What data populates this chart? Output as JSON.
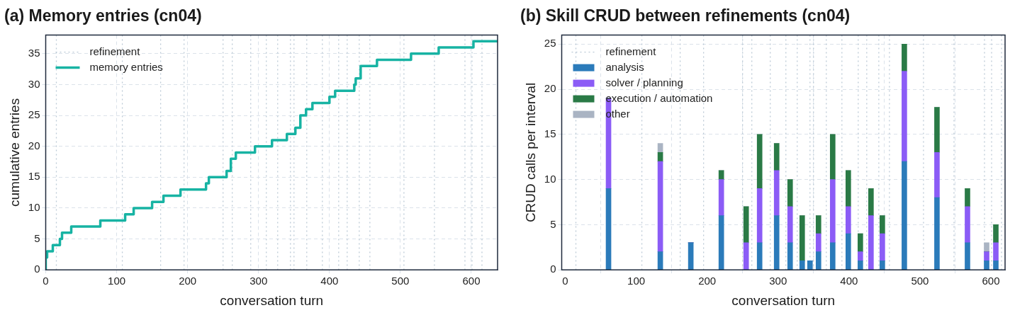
{
  "chart_data": [
    {
      "type": "step",
      "title": "(a) Memory entries (cn04)",
      "xlabel": "conversation turn",
      "ylabel": "cumulative entries",
      "xlim": [
        0,
        637
      ],
      "ylim": [
        0,
        38
      ],
      "xticks": [
        0,
        100,
        200,
        300,
        400,
        500,
        600
      ],
      "yticks": [
        0,
        5,
        10,
        15,
        20,
        25,
        30,
        35
      ],
      "grid": true,
      "legend": "top left",
      "marker": "none",
      "series": [
        {
          "name": "memory entries",
          "color": "#17b3a3",
          "x": [
            0,
            2,
            10,
            20,
            23,
            36,
            77,
            112,
            124,
            150,
            166,
            190,
            226,
            230,
            255,
            261,
            268,
            295,
            319,
            340,
            352,
            359,
            367,
            376,
            400,
            408,
            435,
            437,
            444,
            467,
            515,
            554,
            603,
            616,
            637
          ],
          "values": [
            0,
            2,
            3,
            4,
            5,
            6,
            7,
            8,
            9,
            10,
            11,
            12,
            13,
            14,
            15,
            16,
            18,
            19,
            20,
            21,
            22,
            23,
            25,
            26,
            27,
            28,
            29,
            30,
            31,
            33,
            34,
            35,
            36,
            37,
            37
          ]
        }
      ],
      "ref_lines": [
        {
          "axis": "x",
          "value": 15,
          "label": "refinement",
          "color": "#bccad6",
          "line_style": "dotted"
        },
        {
          "axis": "x",
          "value": 108,
          "color": "#bccad6",
          "line_style": "dotted"
        },
        {
          "axis": "x",
          "value": 162,
          "color": "#bccad6",
          "line_style": "dotted"
        },
        {
          "axis": "x",
          "value": 195,
          "color": "#bccad6",
          "line_style": "dotted"
        },
        {
          "axis": "x",
          "value": 250,
          "color": "#bccad6",
          "line_style": "dotted"
        },
        {
          "axis": "x",
          "value": 263,
          "color": "#bccad6",
          "line_style": "dotted"
        },
        {
          "axis": "x",
          "value": 289,
          "color": "#bccad6",
          "line_style": "dotted"
        },
        {
          "axis": "x",
          "value": 311,
          "color": "#bccad6",
          "line_style": "dotted"
        },
        {
          "axis": "x",
          "value": 327,
          "color": "#bccad6",
          "line_style": "dotted"
        },
        {
          "axis": "x",
          "value": 345,
          "color": "#bccad6",
          "line_style": "dotted"
        },
        {
          "axis": "x",
          "value": 350,
          "color": "#bccad6",
          "line_style": "dotted"
        },
        {
          "axis": "x",
          "value": 368,
          "color": "#bccad6",
          "line_style": "dotted"
        },
        {
          "axis": "x",
          "value": 390,
          "color": "#bccad6",
          "line_style": "dotted"
        },
        {
          "axis": "x",
          "value": 413,
          "color": "#bccad6",
          "line_style": "dotted"
        },
        {
          "axis": "x",
          "value": 425,
          "color": "#bccad6",
          "line_style": "dotted"
        },
        {
          "axis": "x",
          "value": 442,
          "color": "#bccad6",
          "line_style": "dotted"
        },
        {
          "axis": "x",
          "value": 457,
          "color": "#bccad6",
          "line_style": "dotted"
        },
        {
          "axis": "x",
          "value": 505,
          "color": "#bccad6",
          "line_style": "dotted"
        },
        {
          "axis": "x",
          "value": 548,
          "color": "#bccad6",
          "line_style": "dotted"
        },
        {
          "axis": "x",
          "value": 591,
          "color": "#bccad6",
          "line_style": "dotted"
        },
        {
          "axis": "x",
          "value": 601,
          "color": "#bccad6",
          "line_style": "dotted"
        },
        {
          "axis": "x",
          "value": 615,
          "color": "#bccad6",
          "line_style": "dotted"
        }
      ]
    },
    {
      "type": "bar",
      "stacked": true,
      "title": "(b) Skill CRUD between refinements (cn04)",
      "xlabel": "conversation turn",
      "ylabel": "CRUD calls per interval",
      "xlim": [
        -5,
        620
      ],
      "ylim": [
        0,
        26
      ],
      "xticks": [
        0,
        100,
        200,
        300,
        400,
        500,
        600
      ],
      "yticks": [
        0,
        5,
        10,
        15,
        20,
        25
      ],
      "grid": true,
      "legend": "top left",
      "x": [
        61,
        134,
        177,
        220,
        255,
        274,
        298,
        317,
        334,
        345,
        357,
        377,
        399,
        416,
        431,
        447,
        478,
        524,
        567,
        594,
        607
      ],
      "series": [
        {
          "name": "analysis",
          "color": "#2b7bba",
          "values": [
            9,
            2,
            3,
            6,
            0,
            3,
            6,
            3,
            1,
            1,
            2,
            3,
            4,
            1,
            0,
            1,
            12,
            8,
            3,
            1,
            1
          ]
        },
        {
          "name": "solver / planning",
          "color": "#8b5cf6",
          "values": [
            10,
            10,
            0,
            4,
            3,
            6,
            5,
            4,
            0,
            0,
            2,
            7,
            3,
            1,
            6,
            3,
            10,
            5,
            4,
            1,
            2
          ]
        },
        {
          "name": "execution / automation",
          "color": "#2a7a46",
          "values": [
            0,
            1,
            0,
            1,
            4,
            6,
            3,
            3,
            5,
            0,
            2,
            5,
            4,
            2,
            3,
            2,
            3,
            5,
            2,
            0,
            2
          ]
        },
        {
          "name": "other",
          "color": "#aab4c3",
          "values": [
            0,
            1,
            0,
            0,
            0,
            0,
            0,
            0,
            0,
            0,
            0,
            0,
            0,
            0,
            0,
            0,
            0,
            0,
            0,
            1,
            0
          ]
        }
      ],
      "ref_lines": [
        {
          "axis": "x",
          "value": 15,
          "label": "refinement",
          "color": "#bccad6",
          "line_style": "dotted"
        },
        {
          "axis": "x",
          "value": 108,
          "color": "#bccad6",
          "line_style": "dotted"
        },
        {
          "axis": "x",
          "value": 162,
          "color": "#bccad6",
          "line_style": "dotted"
        },
        {
          "axis": "x",
          "value": 195,
          "color": "#bccad6",
          "line_style": "dotted"
        },
        {
          "axis": "x",
          "value": 250,
          "color": "#bccad6",
          "line_style": "dotted"
        },
        {
          "axis": "x",
          "value": 263,
          "color": "#bccad6",
          "line_style": "dotted"
        },
        {
          "axis": "x",
          "value": 289,
          "color": "#bccad6",
          "line_style": "dotted"
        },
        {
          "axis": "x",
          "value": 311,
          "color": "#bccad6",
          "line_style": "dotted"
        },
        {
          "axis": "x",
          "value": 327,
          "color": "#bccad6",
          "line_style": "dotted"
        },
        {
          "axis": "x",
          "value": 345,
          "color": "#bccad6",
          "line_style": "dotted"
        },
        {
          "axis": "x",
          "value": 350,
          "color": "#bccad6",
          "line_style": "dotted"
        },
        {
          "axis": "x",
          "value": 368,
          "color": "#bccad6",
          "line_style": "dotted"
        },
        {
          "axis": "x",
          "value": 390,
          "color": "#bccad6",
          "line_style": "dotted"
        },
        {
          "axis": "x",
          "value": 413,
          "color": "#bccad6",
          "line_style": "dotted"
        },
        {
          "axis": "x",
          "value": 425,
          "color": "#bccad6",
          "line_style": "dotted"
        },
        {
          "axis": "x",
          "value": 442,
          "color": "#bccad6",
          "line_style": "dotted"
        },
        {
          "axis": "x",
          "value": 457,
          "color": "#bccad6",
          "line_style": "dotted"
        },
        {
          "axis": "x",
          "value": 505,
          "color": "#bccad6",
          "line_style": "dotted"
        },
        {
          "axis": "x",
          "value": 548,
          "color": "#bccad6",
          "line_style": "dotted"
        },
        {
          "axis": "x",
          "value": 591,
          "color": "#bccad6",
          "line_style": "dotted"
        },
        {
          "axis": "x",
          "value": 601,
          "color": "#bccad6",
          "line_style": "dotted"
        },
        {
          "axis": "x",
          "value": 615,
          "color": "#bccad6",
          "line_style": "dotted"
        }
      ]
    }
  ]
}
